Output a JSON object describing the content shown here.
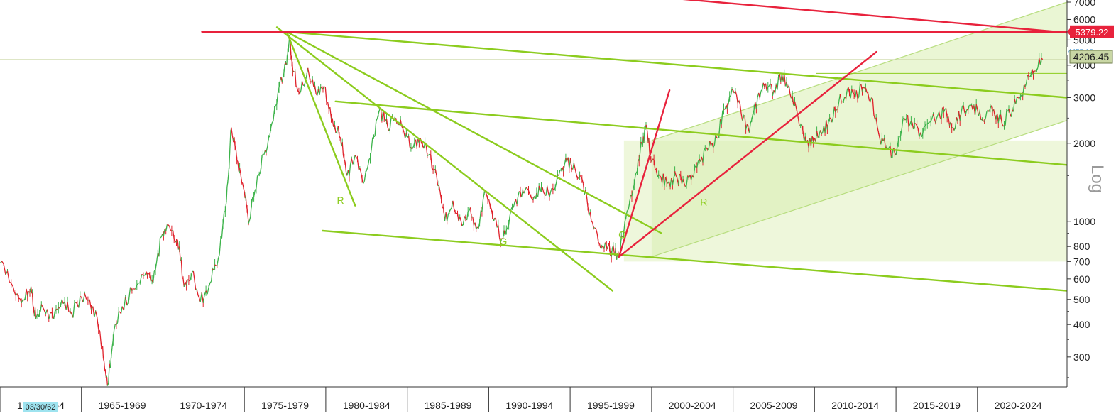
{
  "chart_data": {
    "type": "line",
    "scale": "log",
    "ylim": [
      230,
      7000
    ],
    "y_axis_label": "Log",
    "y_ticks": [
      300,
      400,
      500,
      600,
      700,
      800,
      1000,
      2000,
      3000,
      4000,
      5000,
      6000,
      7000
    ],
    "y_tick_labels": [
      "300",
      "400",
      "500",
      "600",
      "700",
      "800",
      "1000",
      "2000",
      "3000",
      "4000",
      "5000",
      "6000",
      "7000"
    ],
    "x_range": [
      1960.0,
      2025.5
    ],
    "x_periods": [
      "1960-1964",
      "1965-1969",
      "1970-1974",
      "1975-1979",
      "1980-1984",
      "1985-1989",
      "1990-1994",
      "1995-1999",
      "2000-2004",
      "2005-2009",
      "2010-2014",
      "2015-2019",
      "2020-2024"
    ],
    "x_period_labels": [
      "1960-1964",
      "1965-1969",
      "1970-1974",
      "1975-1979",
      "1980-1984",
      "1985-1989",
      "1990-1994",
      "1995-1999",
      "2000-2004",
      "2005-2009",
      "2010-2014",
      "2015-2019",
      "2020-2024"
    ],
    "cursor_date": "03/30/62",
    "price_levels": [
      {
        "label": "5379.22",
        "value": 5379.22,
        "color": "#e8223c"
      },
      {
        "label": "4455.10",
        "value": 4455.1,
        "color": "#63a7d8"
      },
      {
        "label": "4206.45",
        "value": 4206.45,
        "color": "#c9d7a5"
      }
    ],
    "series": [
      {
        "up_color": "#3cb34a",
        "down_color": "#e0212b",
        "points": [
          [
            1960.0,
            690
          ],
          [
            1960.8,
            560
          ],
          [
            1961.4,
            500
          ],
          [
            1961.9,
            560
          ],
          [
            1962.2,
            420
          ],
          [
            1962.6,
            470
          ],
          [
            1963.3,
            420
          ],
          [
            1963.8,
            500
          ],
          [
            1964.4,
            440
          ],
          [
            1965.0,
            510
          ],
          [
            1965.7,
            470
          ],
          [
            1966.3,
            330
          ],
          [
            1966.6,
            232
          ],
          [
            1967.0,
            380
          ],
          [
            1967.5,
            470
          ],
          [
            1968.2,
            550
          ],
          [
            1968.9,
            620
          ],
          [
            1969.4,
            580
          ],
          [
            1969.9,
            870
          ],
          [
            1970.4,
            960
          ],
          [
            1970.9,
            850
          ],
          [
            1971.3,
            560
          ],
          [
            1971.8,
            640
          ],
          [
            1972.3,
            490
          ],
          [
            1972.9,
            580
          ],
          [
            1973.4,
            720
          ],
          [
            1973.9,
            1200
          ],
          [
            1974.2,
            2300
          ],
          [
            1974.6,
            1700
          ],
          [
            1975.0,
            1300
          ],
          [
            1975.3,
            1000
          ],
          [
            1975.8,
            1500
          ],
          [
            1976.2,
            1800
          ],
          [
            1976.7,
            2400
          ],
          [
            1977.2,
            3500
          ],
          [
            1977.6,
            4000
          ],
          [
            1977.8,
            5000
          ],
          [
            1978.0,
            3800
          ],
          [
            1978.4,
            3100
          ],
          [
            1978.9,
            3900
          ],
          [
            1979.4,
            3100
          ],
          [
            1979.9,
            3300
          ],
          [
            1980.4,
            2500
          ],
          [
            1980.9,
            2100
          ],
          [
            1981.3,
            1500
          ],
          [
            1981.8,
            1800
          ],
          [
            1982.3,
            1400
          ],
          [
            1982.8,
            1900
          ],
          [
            1983.3,
            2700
          ],
          [
            1983.8,
            2300
          ],
          [
            1984.3,
            2500
          ],
          [
            1984.8,
            2200
          ],
          [
            1985.3,
            1900
          ],
          [
            1985.8,
            2100
          ],
          [
            1986.3,
            1800
          ],
          [
            1986.8,
            1500
          ],
          [
            1987.3,
            1000
          ],
          [
            1987.8,
            1200
          ],
          [
            1988.3,
            1000
          ],
          [
            1988.8,
            1100
          ],
          [
            1989.3,
            950
          ],
          [
            1989.8,
            1300
          ],
          [
            1990.3,
            1000
          ],
          [
            1990.8,
            860
          ],
          [
            1991.3,
            1050
          ],
          [
            1991.8,
            1250
          ],
          [
            1992.3,
            1350
          ],
          [
            1992.8,
            1250
          ],
          [
            1993.3,
            1350
          ],
          [
            1993.8,
            1300
          ],
          [
            1994.3,
            1500
          ],
          [
            1994.8,
            1700
          ],
          [
            1995.3,
            1600
          ],
          [
            1995.8,
            1400
          ],
          [
            1996.3,
            1000
          ],
          [
            1996.8,
            820
          ],
          [
            1997.3,
            780
          ],
          [
            1997.7,
            760
          ],
          [
            1998.0,
            740
          ],
          [
            1998.5,
            1100
          ],
          [
            1999.0,
            1500
          ],
          [
            1999.4,
            2000
          ],
          [
            1999.7,
            2300
          ],
          [
            2000.0,
            1700
          ],
          [
            2000.5,
            1500
          ],
          [
            2001.0,
            1400
          ],
          [
            2001.5,
            1500
          ],
          [
            2002.0,
            1400
          ],
          [
            2002.5,
            1500
          ],
          [
            2003.0,
            1700
          ],
          [
            2003.5,
            1900
          ],
          [
            2004.0,
            2100
          ],
          [
            2004.5,
            2700
          ],
          [
            2005.0,
            3200
          ],
          [
            2005.5,
            2600
          ],
          [
            2006.0,
            2200
          ],
          [
            2006.5,
            3000
          ],
          [
            2007.0,
            3400
          ],
          [
            2007.5,
            3200
          ],
          [
            2008.0,
            3700
          ],
          [
            2008.5,
            3100
          ],
          [
            2009.0,
            2500
          ],
          [
            2009.5,
            2000
          ],
          [
            2010.0,
            2100
          ],
          [
            2010.5,
            2200
          ],
          [
            2011.0,
            2500
          ],
          [
            2011.5,
            2900
          ],
          [
            2012.0,
            3200
          ],
          [
            2012.5,
            3000
          ],
          [
            2013.0,
            3300
          ],
          [
            2013.5,
            3000
          ],
          [
            2014.0,
            2100
          ],
          [
            2014.5,
            1900
          ],
          [
            2015.0,
            1800
          ],
          [
            2015.5,
            2500
          ],
          [
            2016.0,
            2400
          ],
          [
            2016.5,
            2200
          ],
          [
            2017.0,
            2400
          ],
          [
            2017.5,
            2500
          ],
          [
            2018.0,
            2700
          ],
          [
            2018.5,
            2300
          ],
          [
            2019.0,
            2600
          ],
          [
            2019.5,
            2800
          ],
          [
            2020.0,
            2700
          ],
          [
            2020.5,
            2500
          ],
          [
            2021.0,
            2700
          ],
          [
            2021.5,
            2400
          ],
          [
            2022.0,
            2600
          ],
          [
            2022.5,
            3000
          ],
          [
            2023.0,
            3400
          ],
          [
            2023.5,
            3800
          ],
          [
            2024.0,
            4206
          ]
        ]
      }
    ],
    "trendlines": [
      {
        "color": "#8ccc1e",
        "points": [
          [
            1977.6,
            5380
          ],
          [
            2025.5,
            3000
          ]
        ]
      },
      {
        "color": "#8ccc1e",
        "points": [
          [
            1977.6,
            5380
          ],
          [
            1981.8,
            1150
          ]
        ]
      },
      {
        "color": "#8ccc1e",
        "points": [
          [
            1977.0,
            5600
          ],
          [
            1997.6,
            540
          ]
        ]
      },
      {
        "color": "#8ccc1e",
        "points": [
          [
            1977.6,
            5380
          ],
          [
            2000.6,
            900
          ]
        ]
      },
      {
        "color": "#8ccc1e",
        "points": [
          [
            1980.6,
            2900
          ],
          [
            2025.5,
            1650
          ]
        ]
      },
      {
        "color": "#8ccc1e",
        "points": [
          [
            1979.8,
            920
          ],
          [
            2025.5,
            540
          ]
        ]
      },
      {
        "color": "#e8223c",
        "points": [
          [
            1972.4,
            5379.22
          ],
          [
            2025.5,
            5379.22
          ]
        ]
      },
      {
        "color": "#e8223c",
        "points": [
          [
            1998.0,
            730
          ],
          [
            2001.1,
            3200
          ]
        ]
      },
      {
        "color": "#e8223c",
        "points": [
          [
            1998.0,
            730
          ],
          [
            2013.8,
            4500
          ]
        ]
      },
      {
        "color": "#e8223c",
        "points": [
          [
            1997.5,
            7600
          ],
          [
            2025.5,
            5340
          ]
        ]
      }
    ],
    "channel": {
      "color": "#d9efb0",
      "line_color": "#b7dd7e",
      "upper": [
        [
          2000.0,
          2050
        ],
        [
          2025.5,
          7000
        ]
      ],
      "lower": [
        [
          2000.0,
          730
        ],
        [
          2025.5,
          2450
        ]
      ]
    },
    "highlight_box": {
      "color": "#eef7db",
      "x": [
        1998.3,
        2025.5
      ],
      "y": [
        700,
        2050
      ]
    },
    "annotations": [
      {
        "text": "R",
        "x": 1980.9,
        "y": 1170,
        "color": "#8ccc1e"
      },
      {
        "text": "G",
        "x": 1990.9,
        "y": 810,
        "color": "#8ccc1e"
      },
      {
        "text": "G",
        "x": 1998.2,
        "y": 860,
        "color": "#8ccc1e"
      },
      {
        "text": "R",
        "x": 2003.2,
        "y": 1150,
        "color": "#8ccc1e"
      }
    ]
  }
}
